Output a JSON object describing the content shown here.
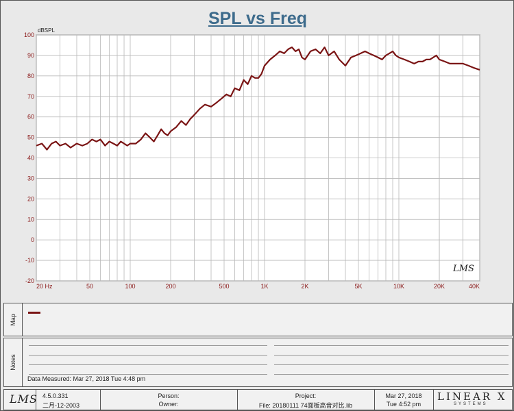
{
  "chart_data": {
    "type": "line",
    "title": "SPL vs Freq",
    "ylabel": "dBSPL",
    "xscale": "log",
    "xlim": [
      20,
      40000
    ],
    "ylim": [
      -20,
      100
    ],
    "yticks": [
      100,
      90,
      80,
      70,
      60,
      50,
      40,
      30,
      20,
      10,
      0,
      -10,
      -20
    ],
    "xticks": [
      {
        "value": 20,
        "label": "20  Hz"
      },
      {
        "value": 50,
        "label": "50"
      },
      {
        "value": 100,
        "label": "100"
      },
      {
        "value": 200,
        "label": "200"
      },
      {
        "value": 500,
        "label": "500"
      },
      {
        "value": 1000,
        "label": "1K"
      },
      {
        "value": 2000,
        "label": "2K"
      },
      {
        "value": 5000,
        "label": "5K"
      },
      {
        "value": 10000,
        "label": "10K"
      },
      {
        "value": 20000,
        "label": "20K"
      },
      {
        "value": 40000,
        "label": "40K"
      }
    ],
    "grid": true,
    "series": [
      {
        "color": "#7a1414",
        "x": [
          20,
          22,
          24,
          26,
          28,
          30,
          33,
          36,
          40,
          44,
          48,
          52,
          56,
          60,
          65,
          70,
          75,
          80,
          85,
          90,
          95,
          100,
          110,
          120,
          130,
          140,
          150,
          160,
          170,
          180,
          190,
          200,
          220,
          240,
          260,
          280,
          300,
          330,
          360,
          400,
          440,
          480,
          520,
          560,
          600,
          650,
          700,
          750,
          800,
          850,
          900,
          950,
          1000,
          1100,
          1200,
          1300,
          1400,
          1500,
          1600,
          1700,
          1800,
          1900,
          2000,
          2200,
          2400,
          2600,
          2800,
          3000,
          3300,
          3600,
          4000,
          4400,
          4800,
          5200,
          5600,
          6000,
          6500,
          7000,
          7500,
          8000,
          8500,
          9000,
          9500,
          10000,
          11000,
          12000,
          13000,
          14000,
          15000,
          16000,
          17000,
          18000,
          19000,
          20000,
          22000,
          24000,
          26000,
          28000,
          30000,
          33000,
          36000,
          40000
        ],
        "y": [
          46,
          47,
          44,
          47,
          48,
          46,
          47,
          45,
          47,
          46,
          47,
          49,
          48,
          49,
          46,
          48,
          47,
          46,
          48,
          47,
          46,
          47,
          47,
          49,
          52,
          50,
          48,
          51,
          54,
          52,
          51,
          53,
          55,
          58,
          56,
          59,
          61,
          64,
          66,
          65,
          67,
          69,
          71,
          70,
          74,
          73,
          78,
          76,
          80,
          79,
          79,
          81,
          85,
          88,
          90,
          92,
          91,
          93,
          94,
          92,
          93,
          89,
          88,
          92,
          93,
          91,
          94,
          90,
          92,
          88,
          85,
          89,
          90,
          91,
          92,
          91,
          90,
          89,
          88,
          90,
          91,
          92,
          90,
          89,
          88,
          87,
          86,
          87,
          87,
          88,
          88,
          89,
          90,
          88,
          87,
          86,
          86,
          86,
          86,
          85,
          84,
          83
        ]
      }
    ]
  },
  "plot_logo": "LMS",
  "map_label": "Map",
  "notes": {
    "label": "Notes",
    "measured": "Data Measured: Mar 27, 2018  Tue  4:48 pm"
  },
  "footer": {
    "logo": "LMS",
    "version": "4.5.0.331",
    "version_date": "二月-12-2003",
    "person_label": "Person:",
    "owner_label": "Owner:",
    "project_label": "Project:",
    "file": "File: 20180111 74面板高音对比.lib",
    "date": "Mar 27, 2018",
    "time": "Tue  4:52 pm",
    "brand": "LINEAR X",
    "brand_sub": "SYSTEMS"
  },
  "colors": {
    "title": "#3d6b8c",
    "curve": "#7a1414",
    "tick_labels": "#8b1a1a"
  }
}
